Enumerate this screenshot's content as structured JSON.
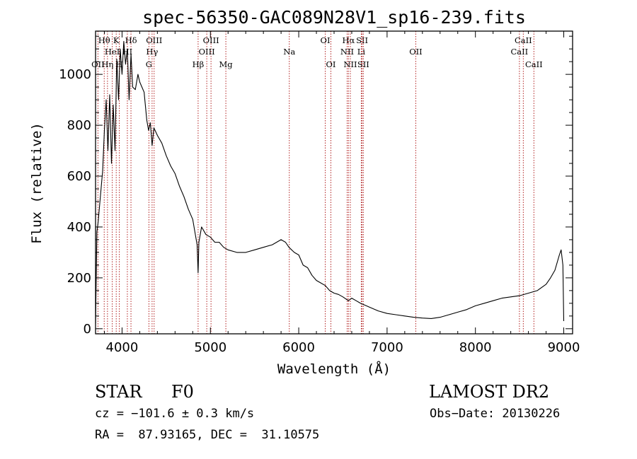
{
  "chart_data": {
    "type": "line",
    "title": "spec-56350-GAC089N28V1_sp16-239.fits",
    "xlabel": "Wavelength (Å)",
    "ylabel": "Flux (relative)",
    "xlim": [
      3700,
      9100
    ],
    "ylim": [
      -20,
      1170
    ],
    "x_ticks": [
      4000,
      5000,
      6000,
      7000,
      8000,
      9000
    ],
    "y_ticks": [
      0,
      200,
      400,
      600,
      800,
      1000
    ],
    "grid": false,
    "series": [
      {
        "x": [
          3700,
          3715,
          3730,
          3750,
          3780,
          3800,
          3820,
          3840,
          3860,
          3880,
          3900,
          3920,
          3940,
          3960,
          3980,
          4000,
          4020,
          4040,
          4060,
          4080,
          4101,
          4120,
          4150,
          4180,
          4200,
          4250,
          4280,
          4300,
          4320,
          4340,
          4360,
          4400,
          4450,
          4500,
          4550,
          4600,
          4650,
          4700,
          4750,
          4800,
          4830,
          4850,
          4861,
          4870,
          4900,
          4950,
          5000,
          5050,
          5100,
          5150,
          5200,
          5300,
          5400,
          5500,
          5600,
          5700,
          5800,
          5850,
          5890,
          5950,
          6000,
          6050,
          6100,
          6150,
          6200,
          6250,
          6300,
          6350,
          6400,
          6450,
          6500,
          6563,
          6600,
          6650,
          6700,
          6800,
          6900,
          7000,
          7100,
          7200,
          7300,
          7400,
          7500,
          7600,
          7700,
          7800,
          7900,
          8000,
          8100,
          8200,
          8300,
          8400,
          8500,
          8600,
          8700,
          8800,
          8850,
          8900,
          8950,
          8970,
          8990,
          9000
        ],
        "y": [
          20,
          380,
          420,
          500,
          620,
          780,
          900,
          700,
          920,
          650,
          880,
          700,
          1060,
          900,
          1100,
          1000,
          1130,
          1040,
          1100,
          900,
          1080,
          950,
          940,
          1000,
          970,
          930,
          820,
          780,
          810,
          720,
          790,
          760,
          730,
          680,
          640,
          610,
          560,
          520,
          470,
          430,
          370,
          330,
          220,
          340,
          400,
          370,
          360,
          340,
          340,
          320,
          310,
          300,
          300,
          310,
          320,
          330,
          350,
          340,
          320,
          300,
          290,
          250,
          240,
          210,
          190,
          180,
          170,
          150,
          140,
          135,
          125,
          110,
          120,
          110,
          100,
          85,
          70,
          60,
          55,
          50,
          45,
          42,
          40,
          45,
          55,
          65,
          75,
          90,
          100,
          110,
          120,
          125,
          130,
          140,
          150,
          175,
          200,
          230,
          290,
          310,
          250,
          30
        ]
      }
    ],
    "line_markers": [
      {
        "label": "Hθ",
        "wavelength": 3798,
        "row": 0
      },
      {
        "label": "OII",
        "wavelength": 3727,
        "row": 2
      },
      {
        "label": "HeI",
        "wavelength": 3889,
        "row": 1
      },
      {
        "label": "Hη",
        "wavelength": 3835,
        "row": 2
      },
      {
        "label": "K",
        "wavelength": 3934,
        "row": 0
      },
      {
        "label": "H",
        "wavelength": 3969,
        "row": 2
      },
      {
        "label": "Hδ",
        "wavelength": 4101,
        "row": 0
      },
      {
        "label": "HI",
        "wavelength": 4060,
        "row": 1
      },
      {
        "label": "OIII",
        "wavelength": 4363,
        "row": 0
      },
      {
        "label": "Hγ",
        "wavelength": 4340,
        "row": 1
      },
      {
        "label": "G",
        "wavelength": 4304,
        "row": 2
      },
      {
        "label": "Hβ",
        "wavelength": 4861,
        "row": 2
      },
      {
        "label": "OIII",
        "wavelength": 5007,
        "row": 0
      },
      {
        "label": "OIII",
        "wavelength": 4959,
        "row": 1
      },
      {
        "label": "Mg",
        "wavelength": 5175,
        "row": 2
      },
      {
        "label": "Na",
        "wavelength": 5893,
        "row": 1
      },
      {
        "label": "OI",
        "wavelength": 6300,
        "row": 0
      },
      {
        "label": "OI",
        "wavelength": 6364,
        "row": 2
      },
      {
        "label": "Hα",
        "wavelength": 6563,
        "row": 0
      },
      {
        "label": "NII",
        "wavelength": 6548,
        "row": 1
      },
      {
        "label": "NII",
        "wavelength": 6584,
        "row": 2
      },
      {
        "label": "SII",
        "wavelength": 6717,
        "row": 0
      },
      {
        "label": "Li",
        "wavelength": 6708,
        "row": 1
      },
      {
        "label": "SII",
        "wavelength": 6731,
        "row": 2
      },
      {
        "label": "OII",
        "wavelength": 7325,
        "row": 1
      },
      {
        "label": "CaII",
        "wavelength": 8542,
        "row": 0
      },
      {
        "label": "CaII",
        "wavelength": 8498,
        "row": 1
      },
      {
        "label": "CaII",
        "wavelength": 8662,
        "row": 2
      }
    ],
    "line_marker_color": "#b22222",
    "series_color": "#000000"
  },
  "info": {
    "class": "STAR",
    "subclass": "F0",
    "survey": "LAMOST DR2",
    "cz": "cz = −101.6 ± 0.3 km/s",
    "obs_date": "Obs−Date: 20130226",
    "radec": "RA =  87.93165, DEC =  31.10575"
  }
}
